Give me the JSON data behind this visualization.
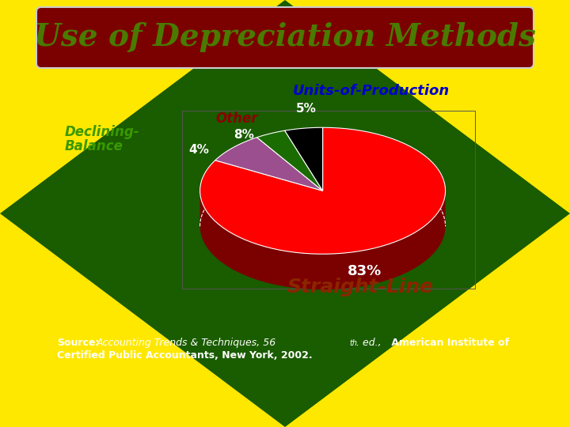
{
  "title": "Use of Depreciation Methods",
  "title_bg_color": "#7B0000",
  "title_text_color": "#4A7A00",
  "background_color": "#FFE800",
  "diamond_color": "#1A5C00",
  "slices": [
    {
      "label": "Straight-Line",
      "value": 83,
      "color": "#FF0000",
      "dark_color": "#7B0000",
      "label_color": "#8B2500",
      "pct": "83%"
    },
    {
      "label": "Other",
      "value": 8,
      "color": "#9B4F8E",
      "dark_color": "#4A1A4A",
      "label_color": "#8B0000",
      "pct": "8%"
    },
    {
      "label": "Declining-Balance",
      "value": 4,
      "color": "#1A6B00",
      "dark_color": "#0A2800",
      "label_color": "#2E8B00",
      "pct": "4%"
    },
    {
      "label": "Units-of-Production",
      "value": 5,
      "color": "#000000",
      "dark_color": "#111111",
      "label_color": "#0000CC",
      "pct": "5%"
    }
  ],
  "source_label": "Source: ",
  "source_italic": "Accounting Trends & Techniques, 56",
  "source_sup": "th",
  "source_rest": ". ed.,",
  "source_bold": " American Institute of\nCertified Public Accountants, New York, 2002.",
  "source_color": "#FFFFFF"
}
